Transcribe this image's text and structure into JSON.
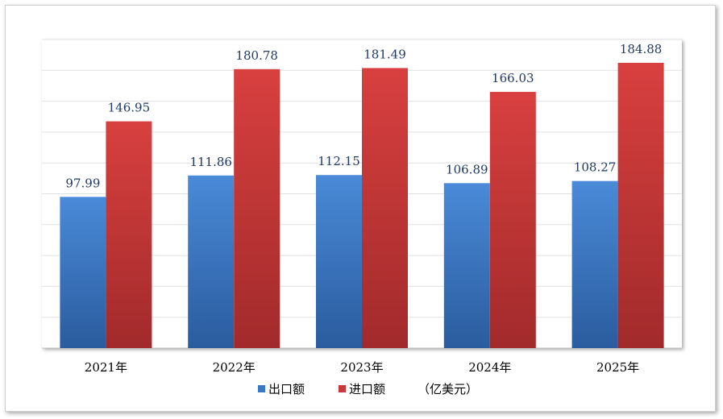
{
  "chart_data": {
    "type": "bar",
    "categories": [
      "2021年",
      "2022年",
      "2023年",
      "2024年",
      "2025年"
    ],
    "series": [
      {
        "name": "出口额",
        "color": "#3a78c6",
        "values": [
          97.99,
          111.86,
          112.15,
          106.89,
          108.27
        ]
      },
      {
        "name": "进口额",
        "color": "#c8383a",
        "values": [
          146.95,
          180.78,
          181.49,
          166.03,
          184.88
        ]
      }
    ],
    "value_labels": [
      [
        "97.99",
        "111.86",
        "112.15",
        "106.89",
        "108.27"
      ],
      [
        "146.95",
        "180.78",
        "181.49",
        "166.03",
        "184.88"
      ]
    ],
    "unit": "（亿美元）",
    "ylim": [
      0,
      200
    ],
    "grid": true,
    "legend_position": "bottom"
  }
}
